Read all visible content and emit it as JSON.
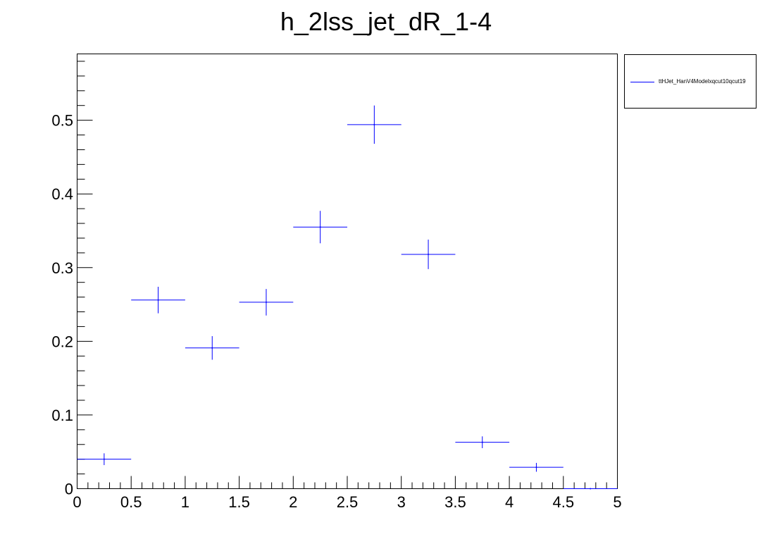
{
  "chart_data": {
    "type": "scatter",
    "style": "histogram-errorbars",
    "title": "h_2lss_jet_dR_1-4",
    "xlabel": "",
    "ylabel": "",
    "xlim": [
      0,
      5
    ],
    "ylim": [
      0,
      0.59
    ],
    "x_ticks": [
      "0",
      "0.5",
      "1",
      "1.5",
      "2",
      "2.5",
      "3",
      "3.5",
      "4",
      "4.5",
      "5"
    ],
    "y_ticks": [
      "0",
      "0.1",
      "0.2",
      "0.3",
      "0.4",
      "0.5"
    ],
    "legend_position": "outside-top-right",
    "grid": false,
    "series": [
      {
        "name": "ttHJet_HanV4Modelxqcut10qcut19",
        "color": "#0000ff",
        "bin_edges": [
          0,
          0.5,
          1,
          1.5,
          2,
          2.5,
          3,
          3.5,
          4,
          4.5,
          5
        ],
        "x": [
          0.25,
          0.75,
          1.25,
          1.75,
          2.25,
          2.75,
          3.25,
          3.75,
          4.25,
          4.75
        ],
        "values": [
          0.04,
          0.256,
          0.191,
          0.253,
          0.355,
          0.494,
          0.318,
          0.063,
          0.029,
          0.0
        ],
        "errors": [
          0.008,
          0.018,
          0.016,
          0.018,
          0.022,
          0.026,
          0.02,
          0.008,
          0.006,
          0.0
        ]
      }
    ]
  }
}
